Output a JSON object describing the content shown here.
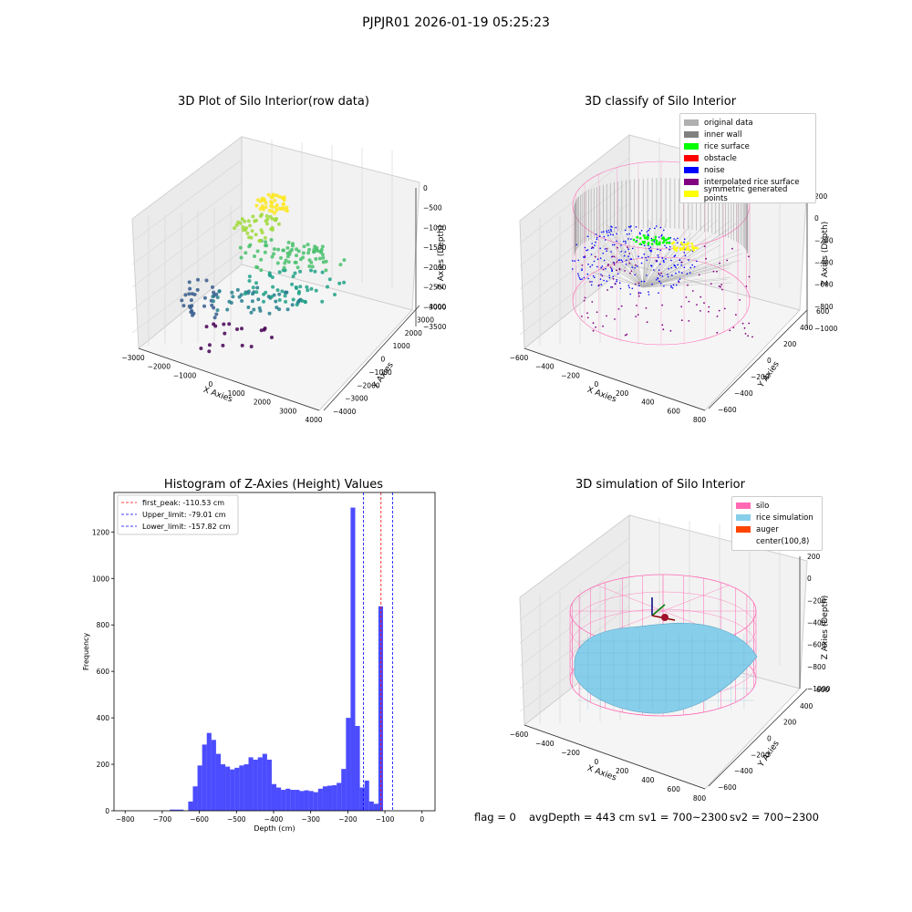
{
  "figure_title": "PJPJR01 2026-01-19 05:25:23",
  "colors": {
    "original_data": "#b0b0b0",
    "inner_wall": "#808080",
    "rice_surface": "#00ff00",
    "obstacle": "#ff0000",
    "noise": "#0000ff",
    "interpolated_rice_surface": "#800080",
    "symmetric_generated_points": "#ffff00",
    "silo": "#ff69b4",
    "rice_simulation": "#87ceeb",
    "auger": "#ff4500",
    "hist_bar": "#0000ff",
    "first_peak_line": "#ff0000",
    "limit_line": "#0000ff"
  },
  "footer": {
    "flag": "flag = 0",
    "avg": "avgDepth = 443 cm",
    "sv1": "sv1 = 700~2300",
    "sv2": "sv2 = 700~2300"
  },
  "chart_data": [
    {
      "type": "scatter",
      "title": "3D Plot of Silo Interior(row data)",
      "xlabel": "X Axies",
      "ylabel": "Y Axies",
      "zlabel": "Z Axies (Depth)",
      "x_ticks": [
        "−3000",
        "−2000",
        "−1000",
        "0",
        "1000",
        "2000",
        "3000",
        "4000"
      ],
      "y_ticks": [
        "−4000",
        "−3000",
        "−2000",
        "−1000",
        "0",
        "1000",
        "2000",
        "3000",
        "4000"
      ],
      "z_ticks": [
        "−3500",
        "−3000",
        "−2500",
        "−2000",
        "−1500",
        "−1000",
        "−500",
        "0"
      ],
      "colormap": "viridis (by depth)"
    },
    {
      "type": "scatter",
      "title": "3D classify of Silo Interior",
      "xlabel": "X Axies",
      "ylabel": "Y Axies",
      "zlabel": "Z Axies (Depth)",
      "x_ticks": [
        "−600",
        "−400",
        "−200",
        "0",
        "200",
        "400",
        "600",
        "800"
      ],
      "y_ticks": [
        "−600",
        "−400",
        "−200",
        "0",
        "200",
        "400",
        "600"
      ],
      "z_ticks": [
        "−1000",
        "−800",
        "−600",
        "−400",
        "−200",
        "0",
        "200"
      ],
      "legend": [
        "original data",
        "inner wall",
        "rice surface",
        "obstacle",
        "noise",
        "interpolated rice surface",
        "symmetric generated points"
      ]
    },
    {
      "type": "bar",
      "title": "Histogram of Z-Axies (Height) Values",
      "xlabel": "Depth (cm)",
      "ylabel": "Frequency",
      "xlim": [
        -830,
        35
      ],
      "ylim": [
        0,
        1370
      ],
      "x_ticks": [
        -800,
        -700,
        -600,
        -500,
        -400,
        -300,
        -200,
        -100,
        0
      ],
      "y_ticks": [
        0,
        200,
        400,
        600,
        800,
        1000,
        1200
      ],
      "bin_width": 12.5,
      "bin_start": -680,
      "values": [
        5,
        5,
        5,
        0,
        40,
        105,
        195,
        285,
        335,
        305,
        245,
        200,
        190,
        178,
        185,
        195,
        200,
        230,
        220,
        230,
        245,
        220,
        115,
        100,
        90,
        95,
        90,
        90,
        85,
        88,
        85,
        80,
        95,
        105,
        108,
        110,
        120,
        180,
        400,
        1305,
        365,
        100,
        130,
        40,
        30,
        880
      ],
      "lines": [
        {
          "label": "first_peak: -110.53 cm",
          "x": -110.53,
          "style": "red"
        },
        {
          "label": "Upper_limit: -79.01 cm",
          "x": -79.01,
          "style": "blue"
        },
        {
          "label": "Lower_limit: -157.82 cm",
          "x": -157.82,
          "style": "blue"
        }
      ]
    },
    {
      "type": "area",
      "title": "3D simulation of Silo Interior",
      "xlabel": "X Axies",
      "ylabel": "Y Axies",
      "zlabel": "Z Axies (Depth)",
      "x_ticks": [
        "−600",
        "−400",
        "−200",
        "0",
        "200",
        "400",
        "600",
        "800"
      ],
      "y_ticks": [
        "−600",
        "−400",
        "−200",
        "0",
        "200",
        "400",
        "600"
      ],
      "z_ticks": [
        "−1000",
        "−800",
        "−600",
        "−400",
        "−200",
        "0",
        "200"
      ],
      "legend": [
        "silo",
        "rice simulation",
        "auger",
        "center(100,8)"
      ]
    }
  ]
}
